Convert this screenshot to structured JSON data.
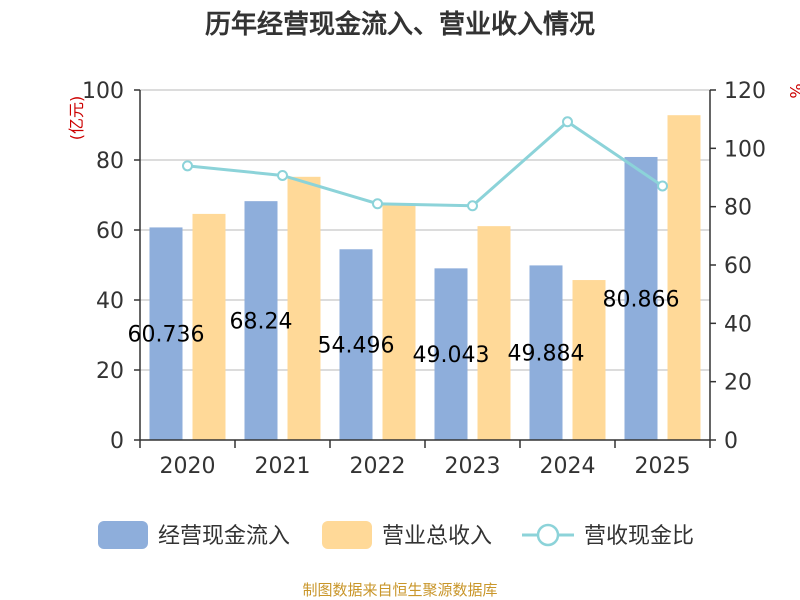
{
  "chart_data": {
    "type": "bar",
    "title": "历年经营现金流入、营业收入情况",
    "categories": [
      "2020",
      "2021",
      "2022",
      "2023",
      "2024",
      "2025"
    ],
    "series": [
      {
        "name": "经营现金流入",
        "kind": "bar",
        "axis": "left",
        "color": "#8eaedb",
        "values": [
          60.736,
          68.24,
          54.496,
          49.043,
          49.884,
          80.866
        ]
      },
      {
        "name": "营业总收入",
        "kind": "bar",
        "axis": "left",
        "color": "#ffd998",
        "values": [
          64.6,
          75.2,
          67.3,
          61.1,
          45.7,
          92.8
        ]
      },
      {
        "name": "营收现金比",
        "kind": "line",
        "axis": "right",
        "color": "#8cd3d9",
        "values": [
          94.0,
          90.7,
          81.0,
          80.3,
          109.1,
          87.1
        ]
      }
    ],
    "data_labels": [
      "60.736",
      "68.24",
      "54.496",
      "49.043",
      "49.884",
      "80.866"
    ],
    "left_axis": {
      "label": "(亿元)",
      "ylim": [
        0,
        100
      ],
      "ticks": [
        "0",
        "20",
        "40",
        "60",
        "80",
        "100"
      ]
    },
    "right_axis": {
      "label": "%",
      "ylim": [
        0,
        120
      ],
      "ticks": [
        "0",
        "20",
        "40",
        "60",
        "80",
        "100",
        "120"
      ]
    },
    "grid": true,
    "legend_position": "bottom",
    "source": "制图数据来自恒生聚源数据库"
  }
}
